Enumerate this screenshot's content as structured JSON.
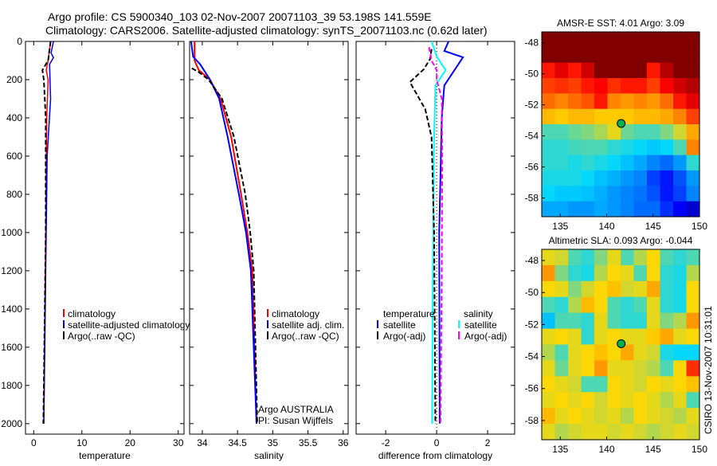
{
  "figure": {
    "title_line1": "Argo profile: CS 5900340_103 02-Nov-2007 20071103_39 53.198S 141.559E",
    "title_line2": "Climatology: CARS2006. Satellite-adjusted climatology: synTS_20071103.nc (0.62d later)",
    "credit": "CSIRO 13-Nov-2007 10:31:01",
    "float_info": [
      "Argo AUSTRALIA",
      "PI: Susan Wijffels"
    ]
  },
  "colors": {
    "climatology": "#ff0000",
    "satellite": "#0000ff",
    "argo": "#000000",
    "sal_satellite": "#00ffff",
    "sal_argo": "#ff00ff"
  },
  "chart_data": [
    {
      "type": "line",
      "id": "temperature",
      "xlabel": "temperature",
      "ylabel": "",
      "xlim": [
        -1.7,
        31.2
      ],
      "ylim": [
        0,
        2055
      ],
      "y_reversed": true,
      "xticks": [
        0,
        10,
        20,
        30
      ],
      "xtick_labels": [
        "0",
        "10",
        "20",
        "30"
      ],
      "yticks": [
        0,
        200,
        400,
        600,
        800,
        1000,
        1200,
        1400,
        1600,
        1800,
        2000
      ],
      "ytick_labels": [
        "0",
        "200",
        "400",
        "600",
        "800",
        "1000",
        "1200",
        "1400",
        "1600",
        "1800",
        "2000"
      ],
      "legend": [
        "climatology",
        "satellite-adjusted climatology",
        "Argo(..raw -QC)"
      ],
      "series": [
        {
          "name": "climatology",
          "color": "#ff0000",
          "dash": false,
          "depth": [
            0,
            100,
            150,
            200,
            400,
            1000,
            2000
          ],
          "values": [
            3.5,
            3.0,
            2.6,
            3.0,
            2.7,
            2.5,
            2.1
          ]
        },
        {
          "name": "satellite-adjusted climatology",
          "color": "#0000ff",
          "dash": false,
          "depth": [
            0,
            60,
            85,
            120,
            300,
            600,
            1200,
            2000
          ],
          "values": [
            4.1,
            3.6,
            4.1,
            3.3,
            3.5,
            2.8,
            2.5,
            2.1
          ]
        },
        {
          "name": "Argo(..raw -QC)",
          "color": "#000000",
          "dash": true,
          "depth": [
            0,
            100,
            150,
            200,
            400,
            1000,
            2000
          ],
          "values": [
            3.5,
            3.0,
            1.8,
            2.1,
            2.5,
            2.5,
            2.0
          ]
        }
      ]
    },
    {
      "type": "line",
      "id": "salinity",
      "xlabel": "salinity",
      "xlim": [
        33.82,
        36.07
      ],
      "ylim": [
        0,
        2055
      ],
      "y_reversed": true,
      "xticks": [
        34,
        34.5,
        35,
        35.5,
        36
      ],
      "xtick_labels": [
        "34",
        "34.5",
        "35",
        "35.5",
        "36"
      ],
      "legend": [
        "climatology",
        "satellite adj. clim.",
        "Argo(..raw -QC)"
      ],
      "series": [
        {
          "name": "climatology",
          "color": "#ff0000",
          "dash": false,
          "depth": [
            0,
            100,
            150,
            200,
            300,
            500,
            800,
            1000,
            1200,
            2000
          ],
          "values": [
            33.89,
            33.89,
            33.95,
            34.11,
            34.26,
            34.41,
            34.55,
            34.64,
            34.71,
            34.77
          ]
        },
        {
          "name": "satellite adj. clim.",
          "color": "#0000ff",
          "dash": false,
          "depth": [
            0,
            80,
            120,
            200,
            300,
            500,
            800,
            1000,
            1200,
            2000
          ],
          "values": [
            33.84,
            33.87,
            33.97,
            34.11,
            34.24,
            34.36,
            34.52,
            34.62,
            34.69,
            34.77
          ]
        },
        {
          "name": "Argo(..raw -QC)",
          "color": "#000000",
          "dash": true,
          "depth": [
            140,
            160,
            200,
            300,
            500,
            800,
            1000,
            1200,
            2000
          ],
          "values": [
            33.85,
            33.95,
            34.09,
            34.28,
            34.45,
            34.61,
            34.68,
            34.73,
            34.78
          ]
        }
      ]
    },
    {
      "type": "line",
      "id": "difference",
      "xlabel": "difference from climatology",
      "xlim": [
        -3.16,
        3.06
      ],
      "ylim": [
        0,
        2055
      ],
      "y_reversed": true,
      "xticks": [
        -2,
        0,
        2
      ],
      "xtick_labels": [
        "-2",
        "0",
        "2"
      ],
      "legend_headers": [
        "temperature",
        "salinity"
      ],
      "legend": [
        "satellite",
        "Argo(-adj)",
        "satellite",
        "Argo(-adj)"
      ],
      "series": [
        {
          "name": "temperature satellite",
          "color": "#0000ff",
          "dash": false,
          "depth": [
            0,
            50,
            83,
            130,
            230,
            400,
            1000,
            2000
          ],
          "values": [
            0.47,
            0.3,
            1.03,
            0.8,
            0.3,
            0.2,
            0.1,
            0.12
          ]
        },
        {
          "name": "salinity satellite",
          "color": "#00ffff",
          "dash": false,
          "depth": [
            0,
            80,
            150,
            230,
            600,
            1200,
            2000
          ],
          "values": [
            -0.2,
            0.0,
            0.35,
            -0.05,
            -0.12,
            -0.15,
            -0.18
          ]
        },
        {
          "name": "temperature Argo(-adj)",
          "color": "#000000",
          "dash": true,
          "depth": [
            40,
            90,
            145,
            213,
            354,
            500,
            1000,
            2000
          ],
          "values": [
            -0.2,
            -0.25,
            -0.5,
            -1.05,
            -0.45,
            -0.2,
            -0.1,
            -0.05
          ]
        },
        {
          "name": "salinity Argo(-adj)",
          "color": "#ff00ff",
          "dash": true,
          "depth": [
            30,
            100,
            150,
            200,
            300,
            600,
            1200,
            2000
          ],
          "values": [
            -0.3,
            -0.2,
            0.0,
            0.0,
            0.2,
            0.22,
            0.2,
            0.15
          ]
        }
      ]
    },
    {
      "type": "heatmap",
      "id": "sst-map",
      "title": "AMSR-E SST: 4.01 Argo: 3.09",
      "xlim": [
        133,
        150
      ],
      "ylim": [
        -59.2,
        -47.3
      ],
      "xticks": [
        135,
        140,
        145,
        150
      ],
      "xtick_labels": [
        "135",
        "140",
        "145",
        "150"
      ],
      "yticks": [
        -48,
        -50,
        -52,
        -54,
        -56,
        -58
      ],
      "ytick_labels": [
        "-48",
        "-50",
        "-52",
        "-54",
        "-56",
        "-58"
      ],
      "marker": {
        "lon": 141.559,
        "lat": -53.198
      },
      "grid": [
        [
          1,
          1,
          1,
          1,
          1,
          1,
          1,
          1,
          1,
          1,
          1,
          1
        ],
        [
          1,
          1,
          1,
          1,
          1,
          1,
          1,
          1,
          1,
          1,
          1,
          1
        ],
        [
          0.85,
          0.9,
          0.85,
          0.92,
          1,
          1,
          1,
          1,
          0.85,
          0.95,
          1,
          1
        ],
        [
          0.8,
          0.82,
          0.8,
          0.85,
          0.88,
          0.82,
          0.85,
          0.85,
          0.8,
          0.88,
          0.92,
          0.95
        ],
        [
          0.75,
          0.72,
          0.75,
          0.78,
          0.85,
          0.72,
          0.7,
          0.72,
          0.7,
          0.75,
          0.85,
          0.9
        ],
        [
          0.66,
          0.64,
          0.66,
          0.66,
          0.64,
          0.64,
          0.64,
          0.66,
          0.66,
          0.68,
          0.72,
          0.8
        ],
        [
          0.45,
          0.45,
          0.48,
          0.5,
          0.54,
          0.6,
          0.48,
          0.45,
          0.45,
          0.5,
          0.58,
          0.68
        ],
        [
          0.42,
          0.42,
          0.44,
          0.45,
          0.45,
          0.42,
          0.4,
          0.38,
          0.36,
          0.38,
          0.45,
          0.72
        ],
        [
          0.42,
          0.42,
          0.4,
          0.42,
          0.4,
          0.38,
          0.35,
          0.32,
          0.28,
          0.25,
          0.3,
          0.42
        ],
        [
          0.4,
          0.4,
          0.4,
          0.38,
          0.35,
          0.33,
          0.3,
          0.28,
          0.2,
          0.15,
          0.22,
          0.3
        ],
        [
          0.38,
          0.36,
          0.36,
          0.35,
          0.33,
          0.3,
          0.28,
          0.26,
          0.22,
          0.15,
          0.2,
          0.28
        ],
        [
          0.32,
          0.32,
          0.3,
          0.3,
          0.32,
          0.3,
          0.28,
          0.25,
          0.25,
          0.18,
          0.12,
          0.08
        ]
      ]
    },
    {
      "type": "heatmap",
      "id": "sla-map",
      "title": "Altimetric SLA: 0.093 Argo: -0.044",
      "xlim": [
        133,
        150
      ],
      "ylim": [
        -59.2,
        -47.3
      ],
      "xticks": [
        135,
        140,
        145,
        150
      ],
      "xtick_labels": [
        "135",
        "140",
        "145",
        "150"
      ],
      "yticks": [
        -48,
        -50,
        -52,
        -54,
        -56,
        -58
      ],
      "ytick_labels": [
        "-48",
        "-50",
        "-52",
        "-54",
        "-56",
        "-58"
      ],
      "marker": {
        "lon": 141.559,
        "lat": -53.198
      },
      "grid": [
        [
          0.6,
          0.58,
          0.45,
          0.42,
          0.5,
          0.6,
          0.45,
          0.55,
          0.62,
          0.45,
          0.42,
          0.45
        ],
        [
          0.7,
          0.5,
          0.42,
          0.4,
          0.55,
          0.62,
          0.6,
          0.45,
          0.62,
          0.42,
          0.4,
          0.55
        ],
        [
          0.62,
          0.6,
          0.5,
          0.58,
          0.62,
          0.65,
          0.58,
          0.6,
          0.68,
          0.42,
          0.4,
          0.62
        ],
        [
          0.45,
          0.42,
          0.55,
          0.66,
          0.62,
          0.45,
          0.42,
          0.45,
          0.6,
          0.42,
          0.4,
          0.62
        ],
        [
          0.35,
          0.45,
          0.45,
          0.42,
          0.6,
          0.45,
          0.42,
          0.42,
          0.6,
          0.5,
          0.55,
          0.7
        ],
        [
          0.6,
          0.62,
          0.6,
          0.42,
          0.6,
          0.62,
          0.6,
          0.6,
          0.64,
          0.68,
          0.6,
          0.62
        ],
        [
          0.55,
          0.45,
          0.6,
          0.62,
          0.65,
          0.62,
          0.68,
          0.6,
          0.58,
          0.4,
          0.38,
          0.38
        ],
        [
          0.6,
          0.48,
          0.6,
          0.62,
          0.7,
          0.6,
          0.6,
          0.58,
          0.55,
          0.45,
          0.62,
          0.82
        ],
        [
          0.62,
          0.6,
          0.58,
          0.45,
          0.45,
          0.62,
          0.6,
          0.58,
          0.62,
          0.6,
          0.62,
          0.65
        ],
        [
          0.6,
          0.62,
          0.6,
          0.62,
          0.58,
          0.62,
          0.6,
          0.62,
          0.6,
          0.55,
          0.6,
          0.45
        ],
        [
          0.66,
          0.6,
          0.62,
          0.6,
          0.58,
          0.6,
          0.55,
          0.62,
          0.6,
          0.58,
          0.55,
          0.6
        ],
        [
          0.6,
          0.55,
          0.58,
          0.6,
          0.6,
          0.58,
          0.6,
          0.58,
          0.55,
          0.58,
          0.6,
          0.58
        ]
      ]
    }
  ]
}
